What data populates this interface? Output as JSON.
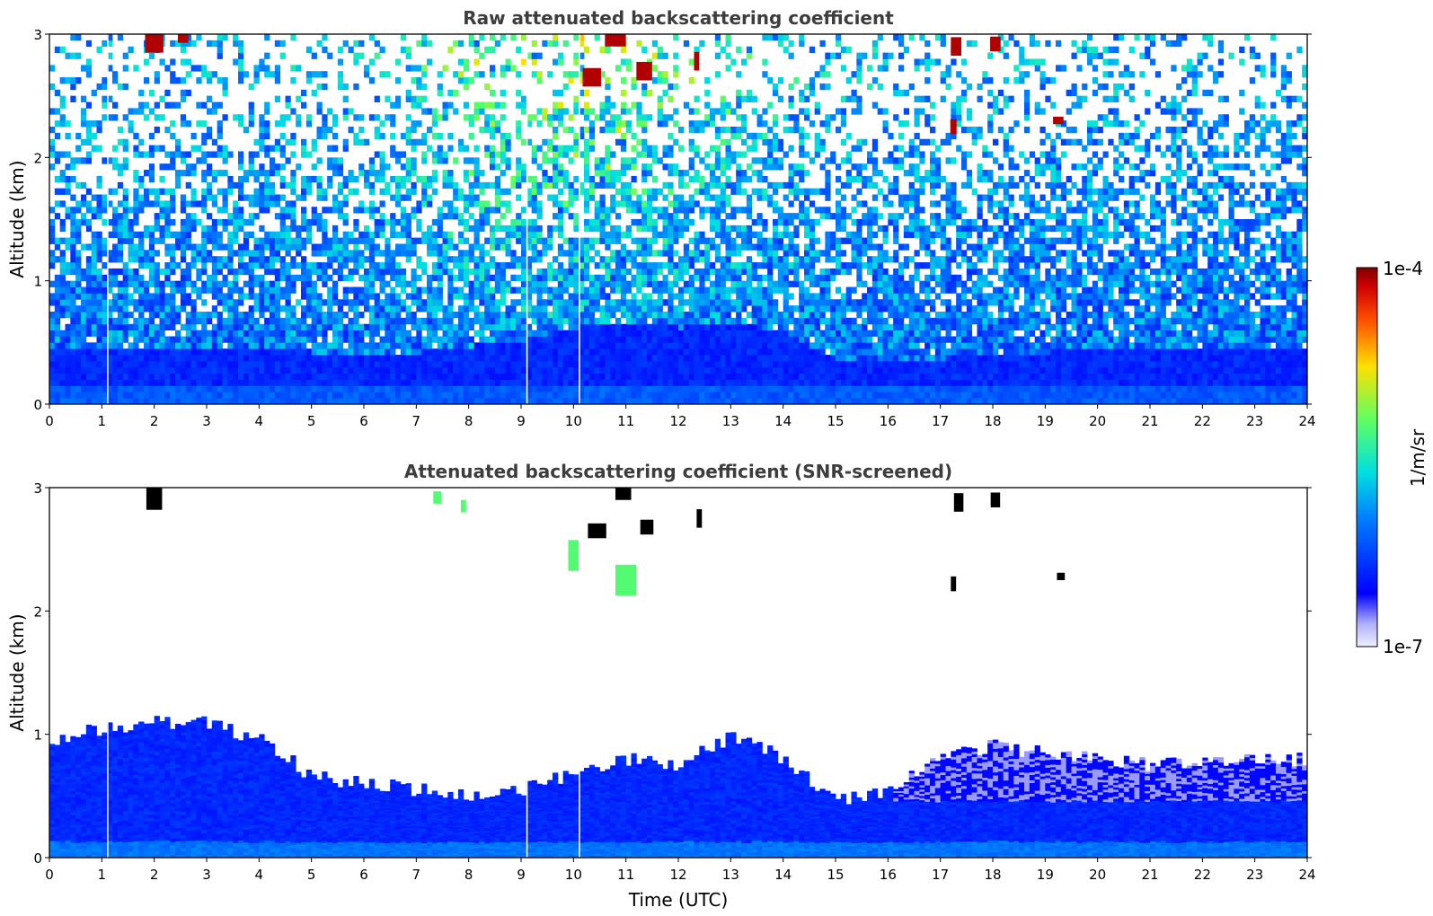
{
  "chart_data": [
    {
      "type": "heatmap",
      "title": "Raw attenuated backscattering coefficient",
      "xlabel": "",
      "ylabel": "Altitude (km)",
      "xlim": [
        0,
        24
      ],
      "ylim": [
        0,
        3
      ],
      "xticks": [
        "0",
        "1",
        "2",
        "3",
        "4",
        "5",
        "6",
        "7",
        "8",
        "9",
        "10",
        "11",
        "12",
        "13",
        "14",
        "15",
        "16",
        "17",
        "18",
        "19",
        "20",
        "21",
        "22",
        "23",
        "24"
      ],
      "yticks": [
        "0",
        "1",
        "2",
        "3"
      ],
      "boundary_layer_top_km": [
        0.45,
        0.45,
        0.45,
        0.45,
        0.45,
        0.4,
        0.4,
        0.4,
        0.45,
        0.5,
        0.6,
        0.65,
        0.6,
        0.65,
        0.55,
        0.35,
        0.35,
        0.35,
        0.4,
        0.4,
        0.45,
        0.45,
        0.45,
        0.45,
        0.45
      ],
      "clouds": [
        {
          "t": 2.0,
          "z": 2.95,
          "w": 0.35,
          "h": 0.2
        },
        {
          "t": 2.55,
          "z": 2.97,
          "w": 0.2,
          "h": 0.08
        },
        {
          "t": 10.35,
          "z": 2.65,
          "w": 0.35,
          "h": 0.15
        },
        {
          "t": 10.8,
          "z": 2.95,
          "w": 0.4,
          "h": 0.1
        },
        {
          "t": 11.35,
          "z": 2.7,
          "w": 0.3,
          "h": 0.15
        },
        {
          "t": 12.35,
          "z": 2.78,
          "w": 0.1,
          "h": 0.15
        },
        {
          "t": 17.3,
          "z": 2.9,
          "w": 0.2,
          "h": 0.15
        },
        {
          "t": 18.05,
          "z": 2.92,
          "w": 0.2,
          "h": 0.12
        },
        {
          "t": 17.25,
          "z": 2.25,
          "w": 0.12,
          "h": 0.12
        },
        {
          "t": 19.25,
          "z": 2.3,
          "w": 0.2,
          "h": 0.06
        }
      ]
    },
    {
      "type": "heatmap",
      "title": "Attenuated backscattering coefficient (SNR-screened)",
      "xlabel": "Time (UTC)",
      "ylabel": "Altitude (km)",
      "xlim": [
        0,
        24
      ],
      "ylim": [
        0,
        3
      ],
      "xticks": [
        "0",
        "1",
        "2",
        "3",
        "4",
        "5",
        "6",
        "7",
        "8",
        "9",
        "10",
        "11",
        "12",
        "13",
        "14",
        "15",
        "16",
        "17",
        "18",
        "19",
        "20",
        "21",
        "22",
        "23",
        "24"
      ],
      "yticks": [
        "0",
        "1",
        "2",
        "3"
      ],
      "valid_top_km": [
        0.95,
        1.05,
        1.1,
        1.1,
        0.95,
        0.65,
        0.6,
        0.55,
        0.5,
        0.55,
        0.7,
        0.8,
        0.75,
        1.0,
        0.8,
        0.45,
        0.55,
        0.85,
        0.9,
        0.85,
        0.8,
        0.75,
        0.8,
        0.8,
        0.8
      ],
      "clouds": [
        {
          "t": 2.0,
          "z": 2.92,
          "w": 0.3,
          "h": 0.2
        },
        {
          "t": 10.45,
          "z": 2.65,
          "w": 0.35,
          "h": 0.12
        },
        {
          "t": 10.95,
          "z": 2.95,
          "w": 0.3,
          "h": 0.1
        },
        {
          "t": 11.4,
          "z": 2.68,
          "w": 0.25,
          "h": 0.12
        },
        {
          "t": 12.4,
          "z": 2.75,
          "w": 0.1,
          "h": 0.15
        },
        {
          "t": 17.35,
          "z": 2.88,
          "w": 0.18,
          "h": 0.15
        },
        {
          "t": 18.05,
          "z": 2.9,
          "w": 0.18,
          "h": 0.12
        },
        {
          "t": 17.25,
          "z": 2.22,
          "w": 0.1,
          "h": 0.12
        },
        {
          "t": 19.3,
          "z": 2.28,
          "w": 0.15,
          "h": 0.06
        }
      ],
      "aerosol_layers": [
        {
          "t": 10.0,
          "z": 2.45,
          "w": 0.2,
          "h": 0.25
        },
        {
          "t": 11.0,
          "z": 2.25,
          "w": 0.4,
          "h": 0.25
        },
        {
          "t": 7.4,
          "z": 2.92,
          "w": 0.15,
          "h": 0.1
        },
        {
          "t": 7.9,
          "z": 2.85,
          "w": 0.1,
          "h": 0.1
        }
      ]
    }
  ],
  "colorbar": {
    "max_label": "1e-4",
    "min_label": "1e-7",
    "unit": "1/m/sr",
    "scale": "log"
  }
}
